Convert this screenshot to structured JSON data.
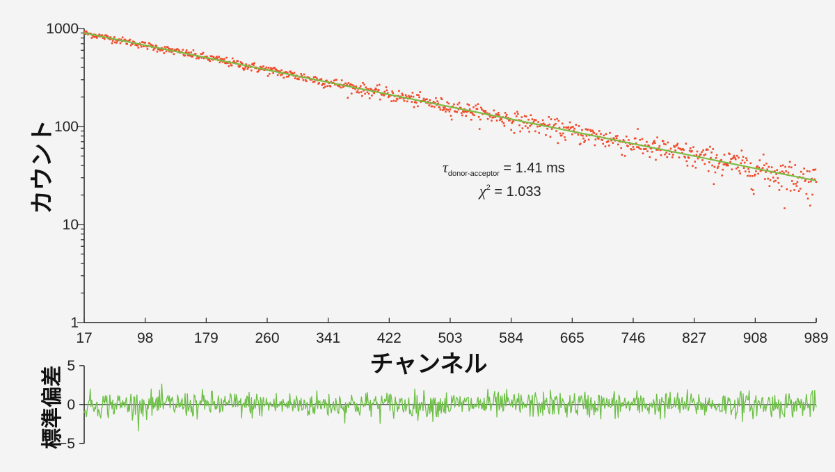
{
  "chart_data": [
    {
      "type": "scatter",
      "title": "",
      "xlabel": "チャンネル",
      "ylabel": "カウント",
      "y_scale": "log",
      "ylim": [
        1,
        1000
      ],
      "xlim": [
        17,
        989
      ],
      "x_ticks": [
        "17",
        "98",
        "179",
        "260",
        "341",
        "422",
        "503",
        "584",
        "665",
        "746",
        "827",
        "908",
        "989"
      ],
      "y_ticks": [
        "1",
        "10",
        "100",
        "1000"
      ],
      "grid": false,
      "series": [
        {
          "role": "data",
          "color": "#f04a2a",
          "start_count": 900,
          "end_count": 28,
          "noise": "poisson"
        },
        {
          "role": "fit",
          "color": "#7dbb42",
          "start_count": 900,
          "end_count": 28
        }
      ],
      "annotations": {
        "tau_symbol": "τ",
        "tau_subscript": "donor-acceptor",
        "tau_text": " = 1.41 ms",
        "chi_symbol": "χ",
        "chi_sup": "2",
        "chi_text": " = 1.033"
      }
    },
    {
      "type": "line",
      "ylabel": "標準偏差",
      "ylim": [
        -5,
        5
      ],
      "y_ticks": [
        "5",
        "0",
        "−5"
      ],
      "series": [
        {
          "role": "residuals",
          "color": "#6cbf45",
          "stdev": 0.85
        }
      ]
    }
  ]
}
